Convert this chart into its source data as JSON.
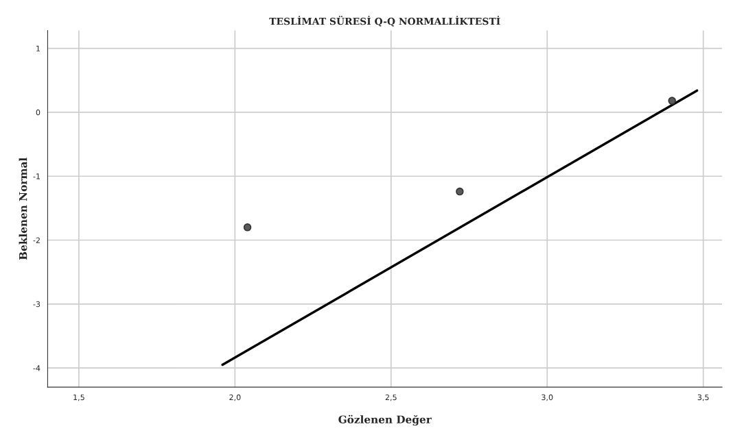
{
  "chart_data": {
    "type": "scatter",
    "title": "TESLİMAT SÜRESİ Q-Q NORMALLİKTESTİ",
    "xlabel": "Gözlenen Değer",
    "ylabel": "Beklenen Normal",
    "series": [
      {
        "marker": "circle",
        "color": "#5a5a5a",
        "x": [
          2.04,
          2.72,
          3.4
        ],
        "values": [
          -1.8,
          -1.24,
          0.18
        ]
      },
      {
        "type": "line",
        "color": "#000000",
        "x": [
          1.96,
          3.48
        ],
        "values": [
          -3.95,
          0.34
        ]
      }
    ],
    "xlim": [
      1.4,
      3.56
    ],
    "ylim": [
      -4.3,
      1.28
    ],
    "xticks": [
      {
        "value": 1.5,
        "label": "1,5"
      },
      {
        "value": 2.0,
        "label": "2,0"
      },
      {
        "value": 2.5,
        "label": "2,5"
      },
      {
        "value": 3.0,
        "label": "3,0"
      },
      {
        "value": 3.5,
        "label": "3,5"
      }
    ],
    "yticks": [
      {
        "value": -4,
        "label": "-4"
      },
      {
        "value": -3,
        "label": "-3"
      },
      {
        "value": -2,
        "label": "-2"
      },
      {
        "value": -1,
        "label": "-1"
      },
      0,
      1
    ],
    "grid": true
  }
}
